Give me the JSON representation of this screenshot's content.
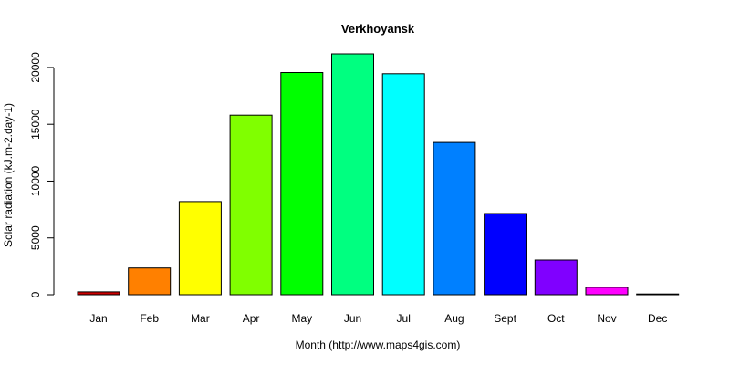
{
  "chart_data": {
    "type": "bar",
    "title": "Verkhoyansk",
    "xlabel": "Month (http://www.maps4gis.com)",
    "ylabel": "Solar radiation (kJ.m-2.day-1)",
    "categories": [
      "Jan",
      "Feb",
      "Mar",
      "Apr",
      "May",
      "Jun",
      "Jul",
      "Aug",
      "Sept",
      "Oct",
      "Nov",
      "Dec"
    ],
    "values": [
      250,
      2350,
      8200,
      15800,
      19550,
      21200,
      19450,
      13400,
      7150,
      3050,
      650,
      20
    ],
    "colors": [
      "#cc0000",
      "#ff8000",
      "#ffff00",
      "#80ff00",
      "#00ff00",
      "#00ff80",
      "#00ffff",
      "#0080ff",
      "#0000ff",
      "#8000ff",
      "#ff00ff",
      "#ff0080"
    ],
    "ylim": [
      0,
      21200
    ],
    "yticks": [
      0,
      5000,
      10000,
      15000,
      20000
    ],
    "grid": false,
    "legend": "none"
  }
}
